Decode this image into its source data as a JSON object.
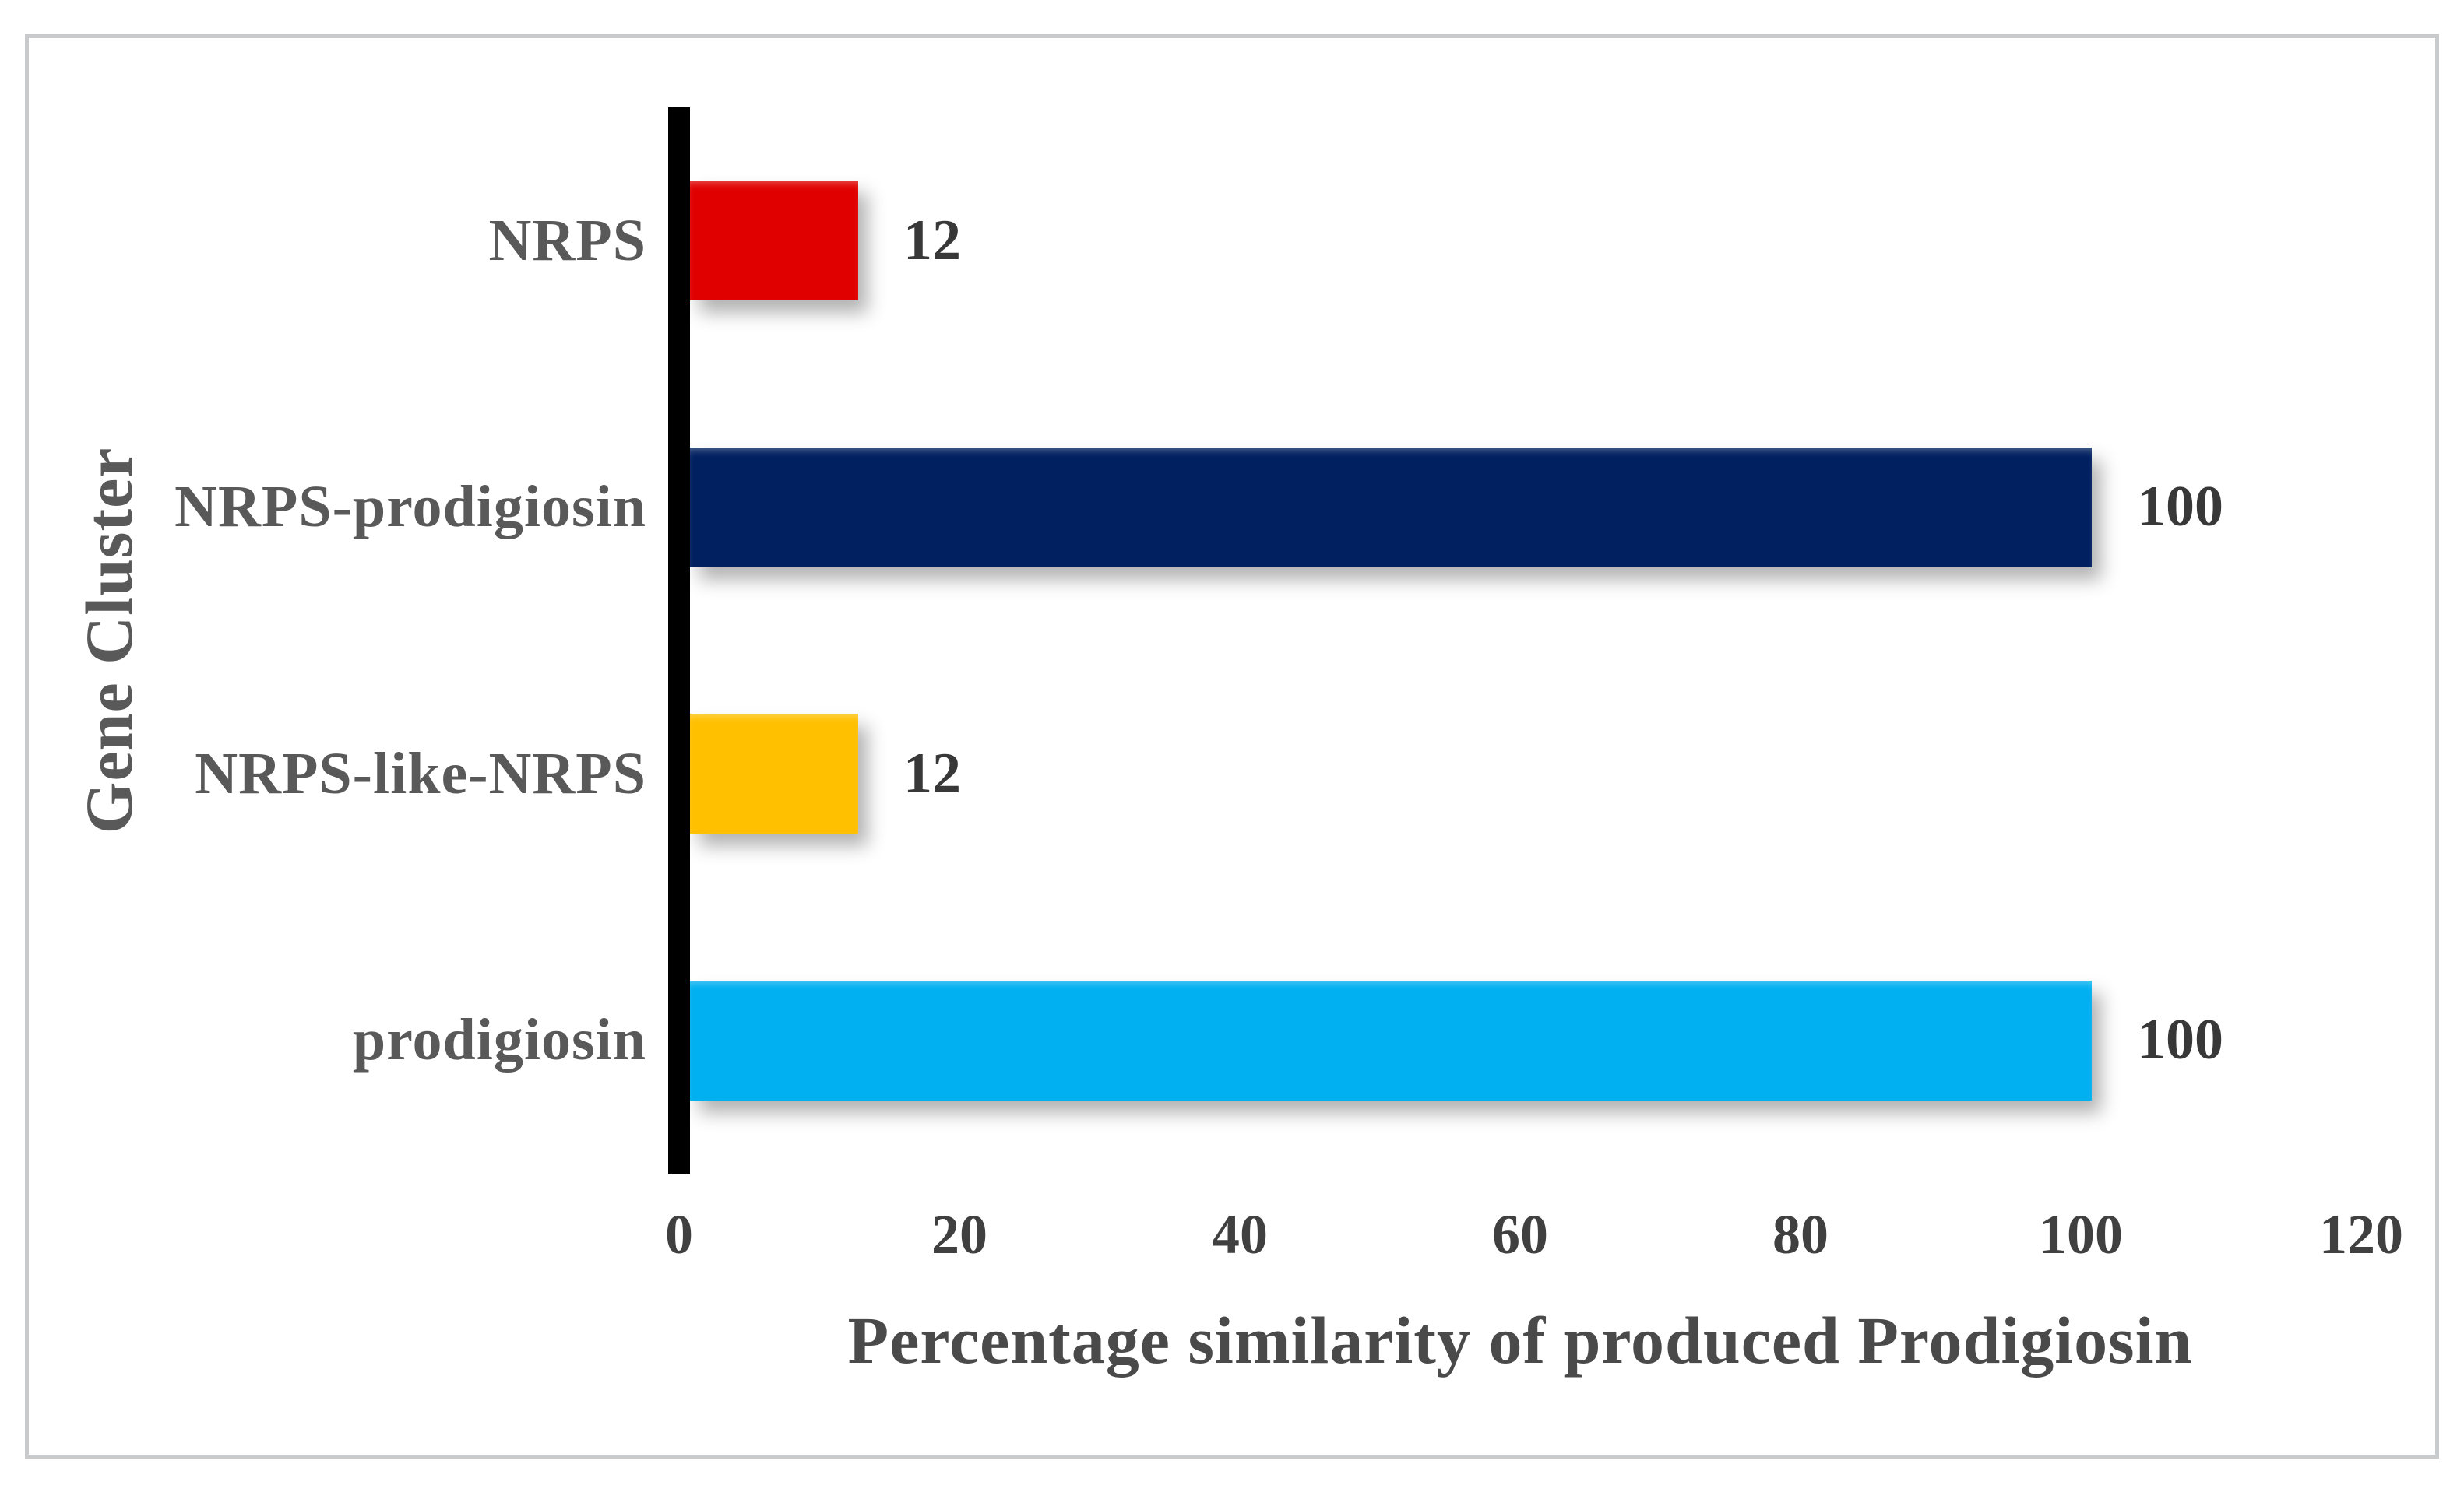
{
  "chart_data": {
    "type": "bar",
    "orientation": "horizontal",
    "title": "",
    "xlabel": "Percentage similarity of produced Prodigiosin",
    "ylabel": "Gene Cluster",
    "categories": [
      "NRPS",
      "NRPS-prodigiosin",
      "NRPS-like-NRPS",
      "prodigiosin"
    ],
    "values": [
      12,
      100,
      12,
      100
    ],
    "data_labels": [
      "12",
      "100",
      "12",
      "100"
    ],
    "bar_colors": [
      "#e00000",
      "#002060",
      "#ffc000",
      "#00b0f0"
    ],
    "xlim": [
      0,
      120
    ],
    "x_ticks": [
      "0",
      "20",
      "40",
      "60",
      "80",
      "100",
      "120"
    ],
    "grid": false,
    "legend": "none",
    "axis_line_color": "#000000",
    "figure_border_color": "#c9cacb",
    "label_color": "#595959",
    "tick_color": "#404040",
    "value_label_color": "#383838"
  }
}
